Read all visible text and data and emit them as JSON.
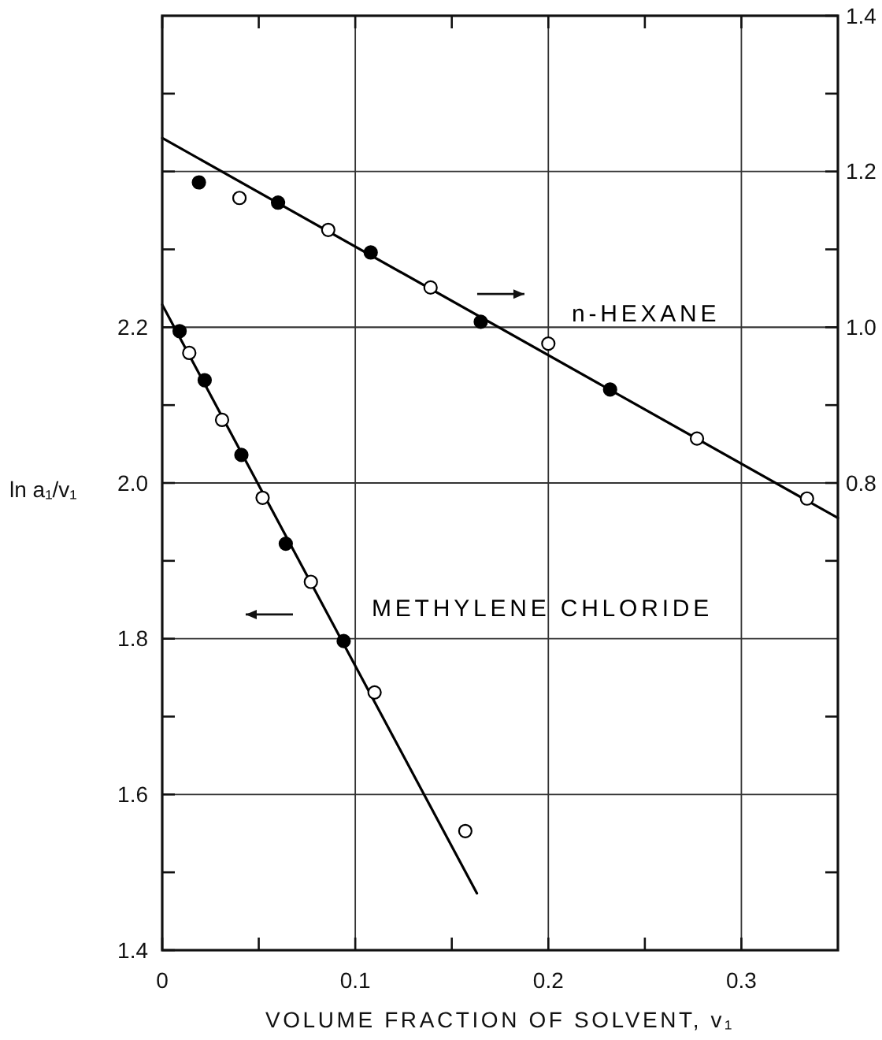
{
  "chart_data": {
    "type": "scatter",
    "xlabel": "VOLUME FRACTION OF SOLVENT, v₁",
    "ylabel": "ln a₁/v₁",
    "xlim": [
      0,
      0.35
    ],
    "xticks": [
      0,
      {
        "value": 0.05,
        "label": null
      },
      0.1,
      {
        "value": 0.15,
        "label": null
      },
      0.2,
      {
        "value": 0.25,
        "label": null
      },
      0.3
    ],
    "ylim": [
      1.4,
      2.6
    ],
    "yticks": [
      1.4,
      {
        "value": 1.5,
        "label": null
      },
      1.6,
      {
        "value": 1.7,
        "label": null
      },
      1.8,
      {
        "value": 1.9,
        "label": null
      },
      {
        "value": 2,
        "label": "2.0"
      },
      {
        "value": 2.1,
        "label": null
      },
      2.2,
      {
        "value": 2.3,
        "label": null
      },
      {
        "value": 2.4,
        "label": null
      },
      {
        "value": 2.5,
        "label": null
      }
    ],
    "y2lim": [
      0.2,
      1.4
    ],
    "y2ticks": [
      {
        "value": 0.3,
        "label": null
      },
      {
        "value": 0.5,
        "label": null
      },
      {
        "value": 0.7,
        "label": null
      },
      0.8,
      {
        "value": 0.9,
        "label": null
      },
      {
        "value": 1,
        "label": "1.0"
      },
      {
        "value": 1.1,
        "label": null
      },
      1.2,
      {
        "value": 1.3,
        "label": null
      },
      1.4
    ],
    "grid": true,
    "series": [
      {
        "type": "line",
        "name": "METHYLENE CHLORIDE",
        "color": "#000000",
        "x": [
          0,
          0.163
        ],
        "values": [
          2.229,
          1.473
        ]
      },
      {
        "marker": "circle",
        "color": "#000000",
        "x": [
          0.009,
          0.014,
          0.022,
          0.031,
          0.041,
          0.052,
          0.064,
          0.077,
          0.094,
          0.11,
          0.157
        ],
        "values": [
          2.195,
          2.167,
          2.132,
          2.081,
          2.036,
          1.981,
          1.922,
          1.873,
          1.797,
          1.731,
          1.553
        ],
        "colors": [
          "#000000",
          "#ffffff",
          "#000000",
          "#ffffff",
          "#000000",
          "#ffffff",
          "#000000",
          "#ffffff",
          "#000000",
          "#ffffff",
          "#ffffff"
        ]
      },
      {
        "type": "line",
        "name": "n-HEXANE",
        "axis": "y2",
        "color": "#000000",
        "x": [
          0,
          0.35
        ],
        "values": [
          1.243,
          0.755
        ]
      },
      {
        "marker": "circle",
        "axis": "y2",
        "color": "#000000",
        "x": [
          0.019,
          0.04,
          0.06,
          0.086,
          0.108,
          0.139,
          0.165,
          0.2,
          0.232,
          0.277,
          0.334
        ],
        "values": [
          1.186,
          1.166,
          1.16,
          1.125,
          1.096,
          1.051,
          1.007,
          0.979,
          0.92,
          0.857,
          0.78
        ],
        "colors": [
          "#000000",
          "#ffffff",
          "#000000",
          "#ffffff",
          "#000000",
          "#ffffff",
          "#000000",
          "#ffffff",
          "#000000",
          "#ffffff",
          "#ffffff"
        ]
      }
    ]
  }
}
